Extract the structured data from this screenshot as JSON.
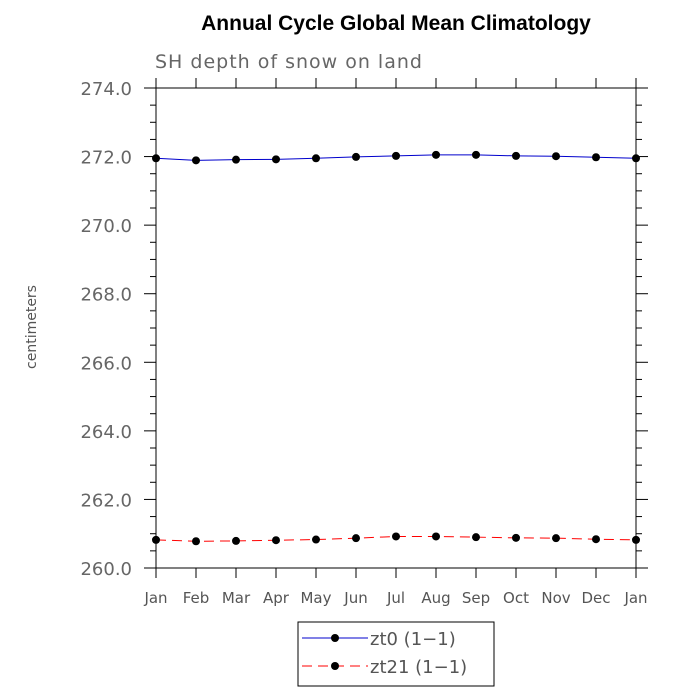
{
  "chart_data": {
    "type": "line",
    "title": "Annual Cycle Global Mean Climatology",
    "subtitle": "SH depth of snow on land",
    "xlabel": "",
    "ylabel": "centimeters",
    "categories": [
      "Jan",
      "Feb",
      "Mar",
      "Apr",
      "May",
      "Jun",
      "Jul",
      "Aug",
      "Sep",
      "Oct",
      "Nov",
      "Dec",
      "Jan"
    ],
    "ylim": [
      260.0,
      274.0
    ],
    "yticks": [
      "260.0",
      "262.0",
      "264.0",
      "266.0",
      "268.0",
      "270.0",
      "272.0",
      "274.0"
    ],
    "series": [
      {
        "name": "zt0 (1−1)",
        "color": "#0000cc",
        "dash": "solid",
        "marker": "dot",
        "values": [
          271.95,
          271.89,
          271.91,
          271.92,
          271.95,
          271.99,
          272.02,
          272.05,
          272.05,
          272.02,
          272.01,
          271.98,
          271.95
        ]
      },
      {
        "name": "zt21 (1−1)",
        "color": "#ff0000",
        "dash": "dashed",
        "marker": "dot",
        "values": [
          260.82,
          260.78,
          260.79,
          260.81,
          260.83,
          260.87,
          260.92,
          260.92,
          260.9,
          260.88,
          260.87,
          260.84,
          260.82
        ]
      }
    ],
    "legend_position": "bottom-center",
    "grid": false
  }
}
